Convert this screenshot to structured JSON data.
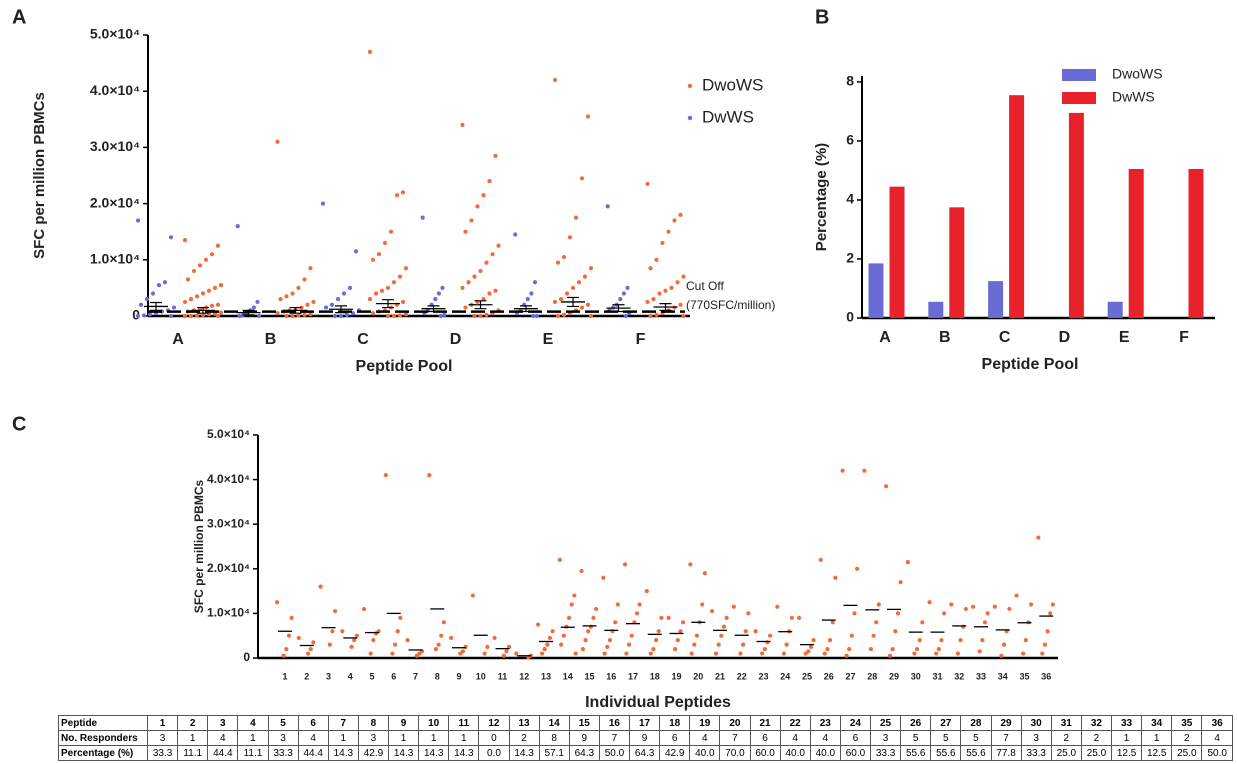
{
  "chart_data": [
    {
      "type": "dot",
      "panel_label": "A",
      "y_label": "SFC per million PBMCs",
      "x_label": "Peptide Pool",
      "categories": [
        "A",
        "B",
        "C",
        "D",
        "E",
        "F"
      ],
      "ylim": [
        0,
        50000
      ],
      "yticks": [
        0,
        {
          "value": 10000,
          "label": "1.0×10⁴"
        },
        {
          "value": 20000,
          "label": "2.0×10⁴"
        },
        {
          "value": 30000,
          "label": "3.0×10⁴"
        },
        {
          "value": 40000,
          "label": "4.0×10⁴"
        },
        {
          "value": 50000,
          "label": "5.0×10⁴"
        }
      ],
      "cutoff": 770,
      "annotations": [
        "Cut Off",
        "(770SFC/million)"
      ],
      "legend": "upper right",
      "series": [
        {
          "name": "DwoWS",
          "color": "#f26b3a",
          "values": [
            [
              13500,
              12500,
              11000,
              10000,
              9000,
              8000,
              6500,
              5500,
              5000,
              4500,
              4000,
              3500,
              3000,
              2500,
              2000,
              1800,
              1500,
              1200,
              1000,
              800,
              600,
              400,
              300,
              200,
              100,
              0,
              0,
              0
            ],
            [
              31000,
              8500,
              6500,
              5000,
              4000,
              3500,
              3000,
              2500,
              2000,
              1500,
              1200,
              1000,
              800,
              500,
              300,
              200,
              100,
              0,
              0
            ],
            [
              47000,
              22000,
              21500,
              15000,
              13000,
              11000,
              10000,
              8500,
              7000,
              6000,
              5000,
              4500,
              4000,
              3000,
              2500,
              2000,
              1500,
              1000,
              800,
              500,
              300,
              100,
              0,
              0
            ],
            [
              34000,
              28500,
              24000,
              21500,
              19500,
              17000,
              15000,
              12500,
              11000,
              9500,
              8000,
              7000,
              6000,
              5000,
              4500,
              4000,
              3000,
              2500,
              2000,
              1500,
              1000,
              500,
              200,
              0,
              0
            ],
            [
              42000,
              35500,
              24500,
              17500,
              14000,
              10500,
              9500,
              8500,
              7000,
              6000,
              5000,
              4000,
              3000,
              2500,
              2000,
              1500,
              1000,
              500,
              200,
              0,
              0
            ],
            [
              23500,
              18000,
              17000,
              15000,
              13000,
              10000,
              8500,
              7000,
              6000,
              5000,
              4500,
              4000,
              3000,
              2500,
              2000,
              1500,
              1000,
              500,
              200,
              0,
              0
            ]
          ],
          "means": [
            1000,
            1000,
            2200,
            2000,
            2500,
            1600
          ],
          "errors": [
            500,
            500,
            700,
            700,
            800,
            600
          ]
        },
        {
          "name": "DwWS",
          "color": "#6c6cd8",
          "values": [
            [
              17000,
              14000,
              6000,
              5500,
              4000,
              3000,
              2000,
              1500,
              1000,
              800,
              500,
              300,
              100,
              0,
              0
            ],
            [
              16000,
              2500,
              1500,
              1000,
              500,
              200,
              0,
              0
            ],
            [
              20000,
              11500,
              5000,
              4000,
              3000,
              2000,
              1500,
              1000,
              500,
              200,
              0,
              0
            ],
            [
              17500,
              5000,
              4000,
              3000,
              2000,
              1000,
              500,
              200,
              0
            ],
            [
              14500,
              6000,
              4000,
              3000,
              2000,
              1000,
              500,
              0,
              0
            ],
            [
              19500,
              5000,
              4000,
              3000,
              2000,
              1500,
              1000,
              500,
              0
            ]
          ],
          "means": [
            1700,
            600,
            1200,
            1300,
            1300,
            1400
          ],
          "errors": [
            700,
            400,
            600,
            500,
            500,
            600
          ]
        }
      ]
    },
    {
      "type": "bar",
      "panel_label": "B",
      "y_label": "Percentage (%)",
      "x_label": "Peptide Pool",
      "categories": [
        "A",
        "B",
        "C",
        "D",
        "E",
        "F"
      ],
      "ylim": [
        0,
        8.2
      ],
      "yticks": [
        0,
        2,
        4,
        6,
        8
      ],
      "legend": "upper right",
      "series": [
        {
          "name": "DwoWS",
          "color": "#6b6bd6",
          "values": [
            1.85,
            0.55,
            1.25,
            0,
            0.55,
            0
          ]
        },
        {
          "name": "DwWS",
          "color": "#e8222a",
          "values": [
            4.45,
            3.75,
            7.55,
            6.95,
            5.05,
            5.05
          ]
        }
      ]
    },
    {
      "type": "dot",
      "panel_label": "C",
      "y_label": "SFC per million PBMCs",
      "x_label": "Individual Peptides",
      "categories": [
        "1",
        "2",
        "3",
        "4",
        "5",
        "6",
        "7",
        "8",
        "9",
        "10",
        "11",
        "12",
        "13",
        "14",
        "15",
        "16",
        "17",
        "18",
        "19",
        "20",
        "21",
        "22",
        "23",
        "24",
        "25",
        "26",
        "27",
        "28",
        "29",
        "30",
        "31",
        "32",
        "33",
        "34",
        "35",
        "36"
      ],
      "ylim": [
        0,
        50000
      ],
      "yticks": [
        0,
        {
          "value": 10000,
          "label": "1.0×10⁴"
        },
        {
          "value": 20000,
          "label": "2.0×10⁴"
        },
        {
          "value": 30000,
          "label": "3.0×10⁴"
        },
        {
          "value": 40000,
          "label": "4.0×10⁴"
        },
        {
          "value": 50000,
          "label": "5.0×10⁴"
        }
      ],
      "series": [
        {
          "color": "#f26b3a",
          "values": [
            [
              12500,
              9000,
              5000,
              2000,
              500
            ],
            [
              4500,
              3500,
              2000,
              1000
            ],
            [
              16000,
              10500,
              6000,
              3000
            ],
            [
              6000,
              5000,
              4000,
              2500
            ],
            [
              11000,
              6000,
              5500,
              4000,
              1000
            ],
            [
              41000,
              9000,
              6000,
              3000,
              1000
            ],
            [
              4000,
              1500,
              1000,
              500
            ],
            [
              41000,
              8000,
              5000,
              3000,
              2000
            ],
            [
              4500,
              2500,
              1500,
              1000
            ],
            [
              14000,
              2500,
              1000
            ],
            [
              4500,
              2500,
              1500,
              500
            ],
            [
              1000,
              500,
              200
            ],
            [
              7500,
              6000,
              4500,
              3000,
              2000,
              1000
            ],
            [
              22000,
              14000,
              12000,
              9000,
              7000,
              5000,
              3000,
              1000
            ],
            [
              19500,
              11000,
              9000,
              7000,
              6000,
              4000,
              2000
            ],
            [
              18000,
              12000,
              8000,
              6000,
              4000,
              2500,
              1000
            ],
            [
              21000,
              12000,
              10000,
              8000,
              5000,
              3000,
              1000
            ],
            [
              15000,
              9000,
              6000,
              4000,
              2000,
              1000
            ],
            [
              9000,
              8000,
              6000,
              4000,
              2000
            ],
            [
              21000,
              19000,
              12000,
              8000,
              5000,
              3000,
              1000
            ],
            [
              10500,
              9000,
              7000,
              5000,
              3000,
              1000
            ],
            [
              11500,
              10000,
              6000,
              3000,
              1000
            ],
            [
              6000,
              5000,
              3500,
              2000,
              1000
            ],
            [
              11500,
              9000,
              6000,
              3000,
              1000
            ],
            [
              9000,
              4000,
              2500,
              1500,
              1000
            ],
            [
              22000,
              18000,
              8000,
              4000,
              2000,
              1000
            ],
            [
              42000,
              20000,
              10000,
              5000,
              2000,
              500
            ],
            [
              42000,
              12000,
              8000,
              5000,
              2000
            ],
            [
              38500,
              17000,
              10000,
              6000,
              2000,
              500
            ],
            [
              21500,
              8000,
              4000,
              2000,
              1000
            ],
            [
              12500,
              10000,
              4000,
              2000,
              1000
            ],
            [
              12000,
              11000,
              7000,
              4000,
              1000
            ],
            [
              11500,
              10000,
              8000,
              4000,
              1500
            ],
            [
              11500,
              11000,
              6000,
              3000,
              500
            ],
            [
              14000,
              12000,
              8000,
              4000,
              1000
            ],
            [
              27000,
              12000,
              10000,
              6000,
              3000,
              1000
            ]
          ],
          "means": [
            6000,
            2800,
            6800,
            4500,
            5700,
            10000,
            1800,
            11000,
            2300,
            5100,
            2100,
            500,
            3700,
            6900,
            7200,
            6200,
            7700,
            5300,
            5500,
            8000,
            6200,
            5100,
            3700,
            5900,
            3000,
            8500,
            11800,
            10800,
            10900,
            5800,
            5800,
            7200,
            7000,
            6300,
            7900,
            9400
          ]
        }
      ]
    }
  ],
  "table": {
    "columns": [
      "Peptide",
      "1",
      "2",
      "3",
      "4",
      "5",
      "6",
      "7",
      "8",
      "9",
      "10",
      "11",
      "12",
      "13",
      "14",
      "15",
      "16",
      "17",
      "18",
      "19",
      "20",
      "21",
      "22",
      "23",
      "24",
      "25",
      "26",
      "27",
      "28",
      "29",
      "30",
      "31",
      "32",
      "33",
      "34",
      "35",
      "36"
    ],
    "rows": [
      [
        "No. Responders",
        "3",
        "1",
        "4",
        "1",
        "3",
        "4",
        "1",
        "3",
        "1",
        "1",
        "1",
        "0",
        "2",
        "8",
        "9",
        "7",
        "9",
        "6",
        "4",
        "7",
        "6",
        "4",
        "4",
        "6",
        "3",
        "5",
        "5",
        "5",
        "7",
        "3",
        "2",
        "2",
        "1",
        "1",
        "2",
        "4"
      ],
      [
        "Percentage (%)",
        "33.3",
        "11.1",
        "44.4",
        "11.1",
        "33.3",
        "44.4",
        "14.3",
        "42.9",
        "14.3",
        "14.3",
        "14.3",
        "0.0",
        "14.3",
        "57.1",
        "64.3",
        "50.0",
        "64.3",
        "42.9",
        "40.0",
        "70.0",
        "60.0",
        "40.0",
        "40.0",
        "60.0",
        "33.3",
        "55.6",
        "55.6",
        "55.6",
        "77.8",
        "33.3",
        "25.0",
        "25.0",
        "12.5",
        "12.5",
        "25.0",
        "50.0"
      ]
    ]
  }
}
